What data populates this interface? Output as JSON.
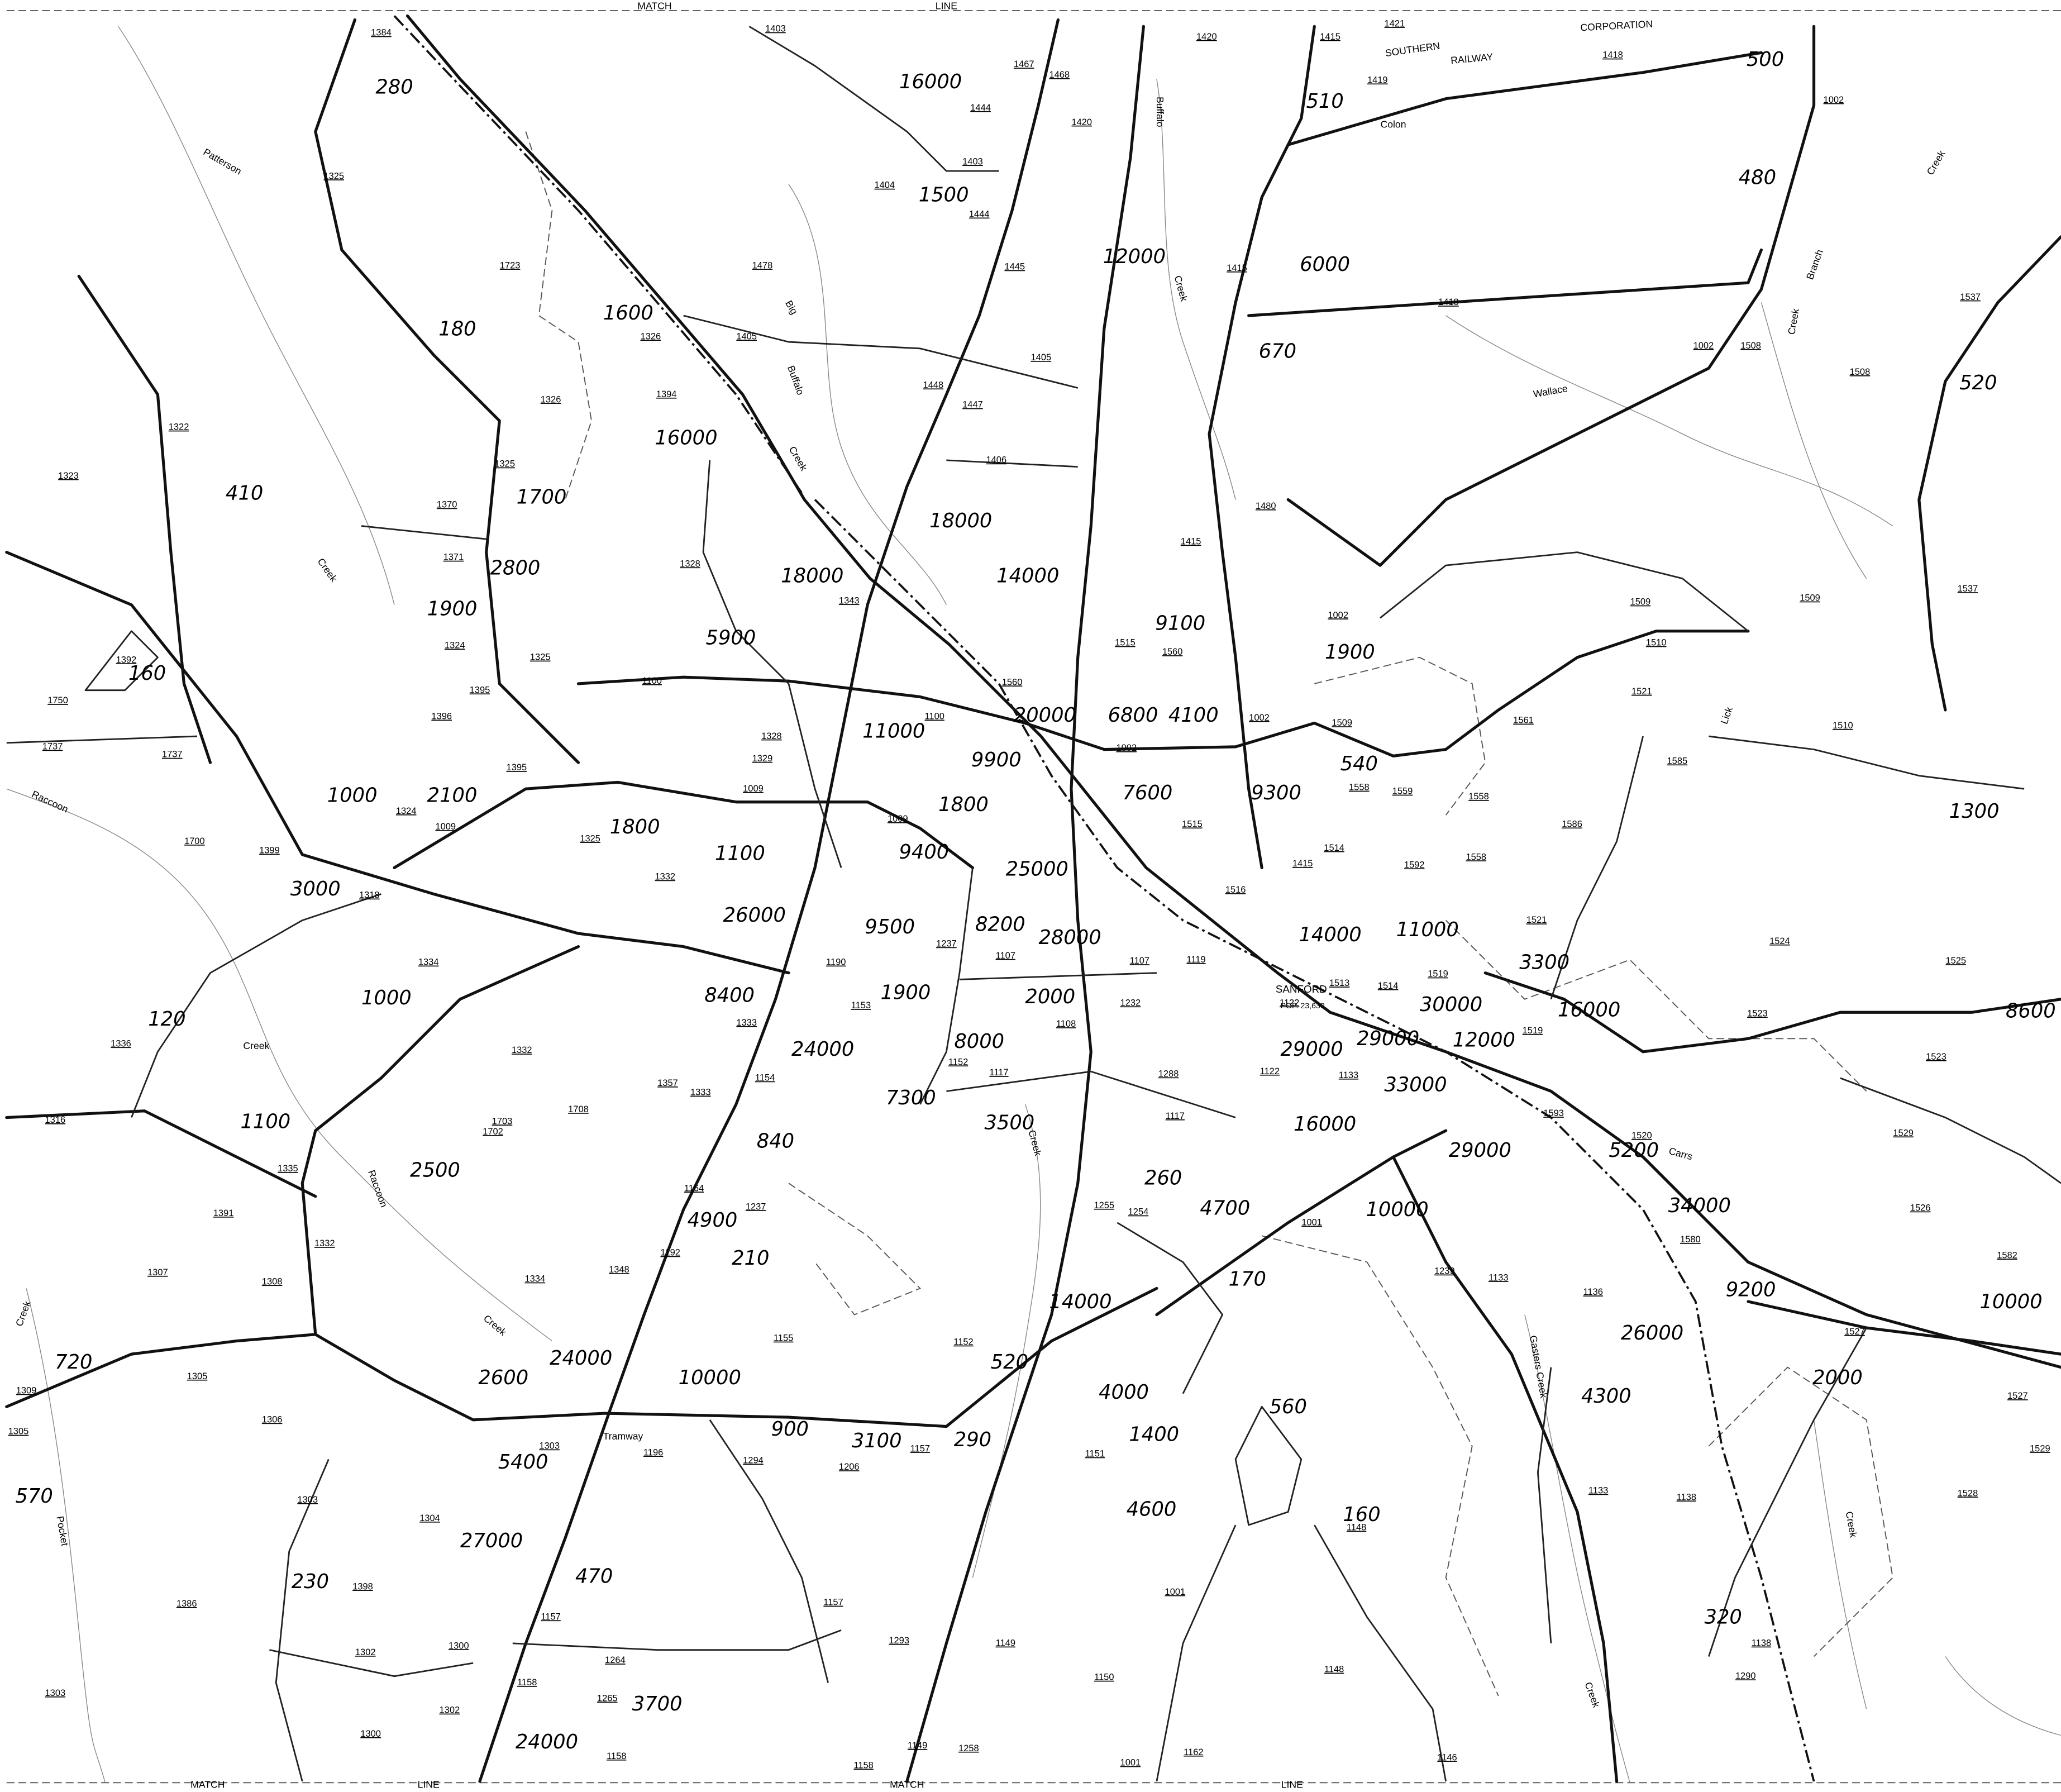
{
  "map": {
    "place": "SANFORD",
    "population": "POP. 23,630",
    "traffic_counts": [
      16000,
      1500,
      12000,
      6000,
      670,
      510,
      500,
      480,
      520,
      280,
      180,
      1600,
      16000,
      410,
      1700,
      2800,
      1900,
      160,
      18000,
      18000,
      14000,
      9100,
      5900,
      11000,
      1900,
      20000,
      6800,
      4100,
      9900,
      7600,
      9300,
      540,
      1000,
      2100,
      1800,
      1100,
      1800,
      9400,
      25000,
      3000,
      26000,
      9500,
      8200,
      28000,
      14000,
      11000,
      3300,
      1300,
      8600,
      1000,
      120,
      8400,
      1900,
      2000,
      8000,
      30000,
      29000,
      12000,
      16000,
      29000,
      24000,
      7300,
      33000,
      3500,
      840,
      29000,
      16000,
      5200,
      1100,
      2500,
      10000,
      34000,
      260,
      4700,
      4900,
      210,
      9200,
      10000,
      26000,
      2000,
      170,
      14000,
      720,
      2600,
      24000,
      10000,
      520,
      4000,
      4300,
      560,
      1400,
      900,
      3100,
      290,
      5400,
      570,
      27000,
      470,
      4600,
      160,
      230,
      320,
      3700,
      24000
    ],
    "route_numbers": [
      "1403",
      "1420",
      "1421",
      "1418",
      "1419",
      "1415",
      "1002",
      "1384",
      "1467",
      "1468",
      "1444",
      "1420",
      "1403",
      "1404",
      "1444",
      "1325",
      "1723",
      "1445",
      "1478",
      "1418",
      "1415",
      "1537",
      "1508",
      "1508",
      "1002",
      "1405",
      "1405",
      "1448",
      "1447",
      "1326",
      "1394",
      "1326",
      "1322",
      "1325",
      "1323",
      "1406",
      "1480",
      "1370",
      "1371",
      "1328",
      "1343",
      "1415",
      "1002",
      "1509",
      "1509",
      "1537",
      "1324",
      "1325",
      "1392",
      "1100",
      "1100",
      "1560",
      "1515",
      "1560",
      "1510",
      "1521",
      "1510",
      "1395",
      "1396",
      "1750",
      "1737",
      "1737",
      "1395",
      "1328",
      "1329",
      "1009",
      "1002",
      "1002",
      "1509",
      "1561",
      "1585",
      "1324",
      "1009",
      "1325",
      "1009",
      "1558",
      "1559",
      "1558",
      "1586",
      "1700",
      "1399",
      "1332",
      "1514",
      "1515",
      "1415",
      "1558",
      "1592",
      "1516",
      "1318",
      "1237",
      "1107",
      "1107",
      "1119",
      "1122",
      "1513",
      "1514",
      "1519",
      "1521",
      "1524",
      "1525",
      "1334",
      "1190",
      "1333",
      "1153",
      "1232",
      "1108",
      "1336",
      "1332",
      "1152",
      "1117",
      "1154",
      "1357",
      "1333",
      "1288",
      "1117",
      "1122",
      "1133",
      "1519",
      "1523",
      "1523",
      "1593",
      "1316",
      "1529",
      "1335",
      "1702",
      "1391",
      "1708",
      "1703",
      "1164",
      "1237",
      "1520",
      "1255",
      "1254",
      "1001",
      "1526",
      "1332",
      "1348",
      "1192",
      "1239",
      "1133",
      "1136",
      "1580",
      "1582",
      "1307",
      "1308",
      "1334",
      "1305",
      "1309",
      "1305",
      "1306",
      "1155",
      "1152",
      "1527",
      "1528",
      "1529",
      "1527",
      "1303",
      "1196",
      "1294",
      "1206",
      "1157",
      "1151",
      "1303",
      "1304",
      "1398",
      "1386",
      "1148",
      "1133",
      "1138",
      "1001",
      "1157",
      "1293",
      "1149",
      "1150",
      "1146",
      "1290",
      "1138",
      "1302",
      "1300",
      "1303",
      "1302",
      "1300",
      "1158",
      "1158",
      "1157",
      "1264",
      "1265",
      "1001",
      "1162",
      "1149",
      "1258",
      "1158",
      "1148"
    ],
    "labels": [
      "Tramway",
      "Colon",
      "SOUTHERN",
      "RAILWAY",
      "CORPORATION",
      "Patterson",
      "Creek",
      "Raccoon",
      "Creek",
      "Raccoon",
      "Creek",
      "Creek",
      "Pocket",
      "Buffalo",
      "Creek",
      "Big",
      "Buffalo",
      "Creek",
      "Wallace",
      "Creek",
      "Branch",
      "Creek",
      "Lick",
      "Carrs",
      "Creek",
      "Gasters Creek",
      "Creek",
      "Creek",
      "MATCH",
      "LINE",
      "MATCH",
      "LINE",
      "MATCH",
      "LINE"
    ]
  }
}
